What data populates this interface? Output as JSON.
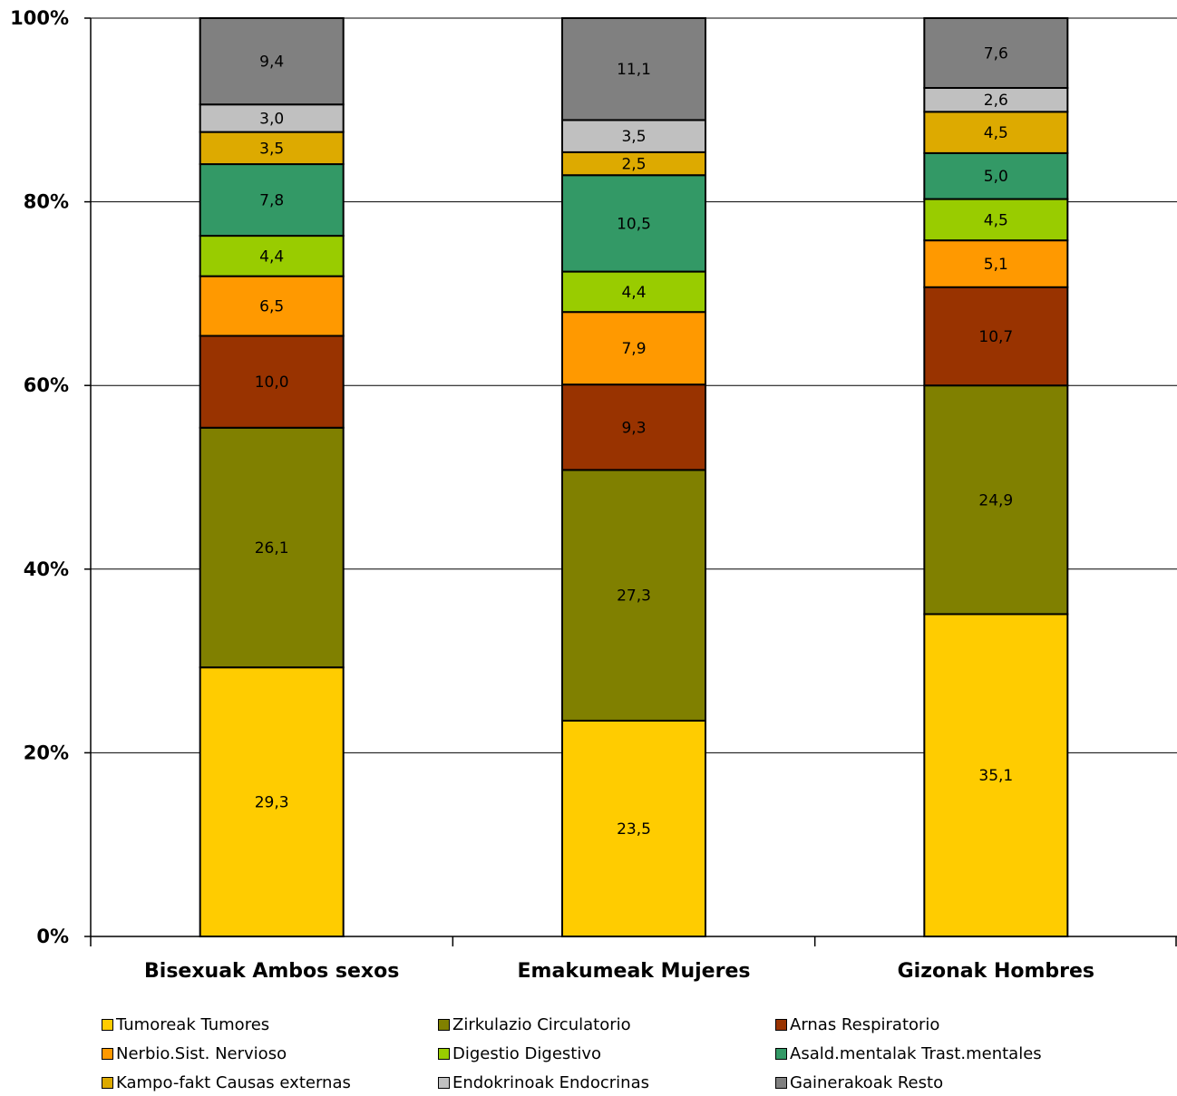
{
  "chart_data": {
    "type": "bar",
    "stacked": "percent",
    "title": "",
    "xlabel": "",
    "ylabel": "",
    "ylim": [
      0,
      100
    ],
    "y_ticks": [
      "0%",
      "20%",
      "40%",
      "60%",
      "80%",
      "100%"
    ],
    "grid": "horizontal",
    "legend_position": "bottom",
    "categories": [
      "Bisexuak Ambos sexos",
      "Emakumeak Mujeres",
      "Gizonak Hombres"
    ],
    "series": [
      {
        "name": "Tumoreak Tumores",
        "color": "#FFCC00",
        "values": [
          29.3,
          23.5,
          35.1
        ],
        "labels": [
          "29,3",
          "23,5",
          "35,1"
        ]
      },
      {
        "name": "Zirkulazio Circulatorio",
        "color": "#808000",
        "values": [
          26.1,
          27.3,
          24.9
        ],
        "labels": [
          "26,1",
          "27,3",
          "24,9"
        ]
      },
      {
        "name": "Arnas Respiratorio",
        "color": "#993300",
        "values": [
          10.0,
          9.3,
          10.7
        ],
        "labels": [
          "10,0",
          "9,3",
          "10,7"
        ]
      },
      {
        "name": "Nerbio.Sist. Nervioso",
        "color": "#FF9900",
        "values": [
          6.5,
          7.9,
          5.1
        ],
        "labels": [
          "6,5",
          "7,9",
          "5,1"
        ]
      },
      {
        "name": "Digestio Digestivo",
        "color": "#99CC00",
        "values": [
          4.4,
          4.4,
          4.5
        ],
        "labels": [
          "4,4",
          "4,4",
          "4,5"
        ]
      },
      {
        "name": "Asald.mentalak Trast.mentales",
        "color": "#339966",
        "values": [
          7.8,
          10.5,
          5.0
        ],
        "labels": [
          "7,8",
          "10,5",
          "5,0"
        ]
      },
      {
        "name": "Kampo-fakt Causas externas",
        "color": "#DDAA00",
        "values": [
          3.5,
          2.5,
          4.5
        ],
        "labels": [
          "3,5",
          "2,5",
          "4,5"
        ]
      },
      {
        "name": "Endokrinoak Endocrinas",
        "color": "#C0C0C0",
        "values": [
          3.0,
          3.5,
          2.6
        ],
        "labels": [
          "3,0",
          "3,5",
          "2,6"
        ]
      },
      {
        "name": "Gainerakoak Resto",
        "color": "#808080",
        "values": [
          9.4,
          11.1,
          7.6
        ],
        "labels": [
          "9,4",
          "11,1",
          "7,6"
        ]
      }
    ]
  }
}
